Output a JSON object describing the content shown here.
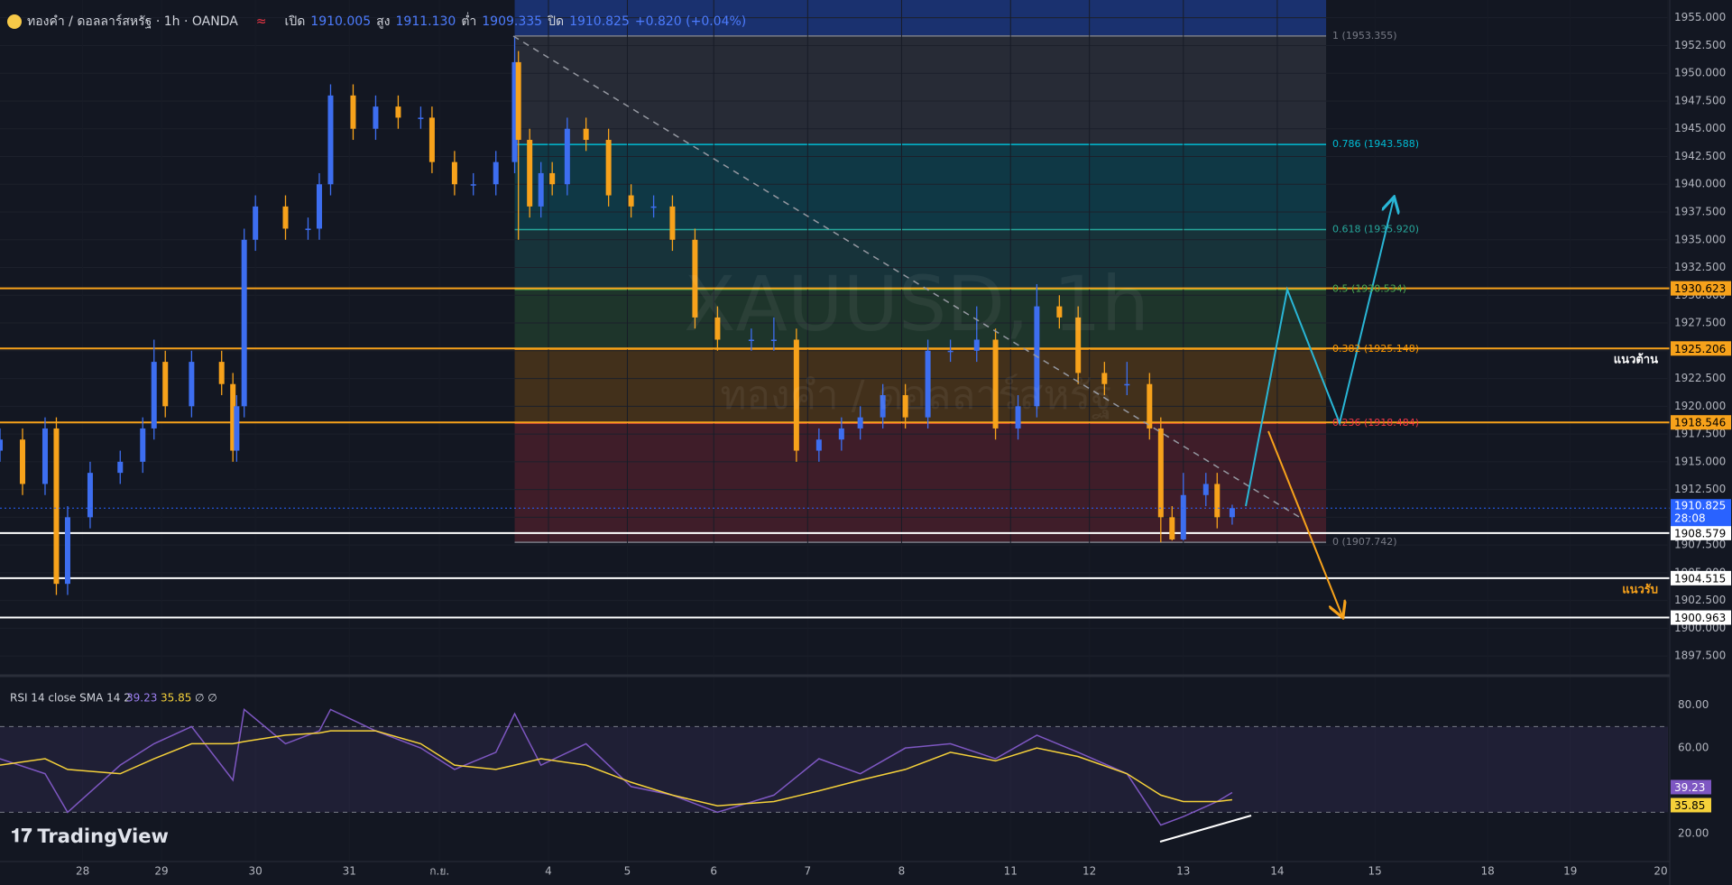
{
  "header": {
    "symbol": "ทองคำ / ดอลลาร์สหรัฐ · 1h · OANDA",
    "open_label": "เปิด",
    "open": "1910.005",
    "high_label": "สูง",
    "high": "1911.130",
    "low_label": "ต่ำ",
    "low": "1909.335",
    "close_label": "ปิด",
    "close": "1910.825",
    "change": "+0.820 (+0.04%)"
  },
  "watermark": [
    "XAUUSD, 1h",
    "ทองคำ / ดอลลาร์สหรัฐ"
  ],
  "logo": "TradingView",
  "annotations": [
    "แนวต้าน",
    "แนวรับ"
  ],
  "chart_data": [
    {
      "type": "candlestick",
      "up_color": "#3d6ef0",
      "down_color": "#f7a21b",
      "x": [
        0,
        6,
        12,
        15,
        18,
        24,
        32,
        38,
        41,
        44,
        51,
        59,
        62,
        63,
        65,
        68,
        76,
        82,
        85,
        88,
        94,
        100,
        106,
        112,
        115,
        121,
        126,
        132,
        137,
        138,
        141,
        144,
        147,
        151,
        156,
        162,
        168,
        174,
        179,
        185,
        191,
        200,
        206,
        212,
        218,
        224,
        229,
        235,
        241,
        247,
        253,
        260,
        265,
        271,
        276,
        282,
        287,
        294,
        300,
        306,
        309,
        312,
        315,
        321,
        324,
        328
      ],
      "open": [
        1916,
        1917,
        1913,
        1918,
        1904,
        1910,
        1914,
        1915,
        1918,
        1924,
        1920,
        1924,
        1922,
        1916,
        1920,
        1935,
        1938,
        1936,
        1936,
        1940,
        1948,
        1945,
        1947,
        1946,
        1946,
        1942,
        1940,
        1940,
        1942,
        1951,
        1944,
        1938,
        1941,
        1940,
        1945,
        1944,
        1939,
        1938,
        1938,
        1935,
        1928,
        1926,
        1926,
        1926,
        1916,
        1917,
        1918,
        1919,
        1921,
        1919,
        1925,
        1925,
        1926,
        1918,
        1920,
        1929,
        1928,
        1923,
        1922,
        1922,
        1918,
        1910,
        1908,
        1912,
        1913,
        1910.005
      ],
      "high": [
        1918,
        1918,
        1919,
        1919,
        1911,
        1915,
        1916,
        1919,
        1926,
        1925,
        1925,
        1925,
        1923,
        1921,
        1936,
        1939,
        1939,
        1937,
        1941,
        1949,
        1949,
        1948,
        1948,
        1947,
        1947,
        1943,
        1941,
        1943,
        1953.355,
        1952,
        1945,
        1942,
        1942,
        1946,
        1946,
        1945,
        1940,
        1939,
        1939,
        1936,
        1929,
        1927,
        1928,
        1927,
        1918,
        1919,
        1920,
        1922,
        1922,
        1926,
        1926,
        1929,
        1927,
        1921,
        1931,
        1930,
        1929,
        1924,
        1924,
        1923,
        1919,
        1911,
        1914,
        1914,
        1914,
        1911.13
      ],
      "low": [
        1915,
        1912,
        1912,
        1903,
        1903,
        1909,
        1913,
        1914,
        1917,
        1919,
        1919,
        1921,
        1915,
        1915,
        1919,
        1934,
        1935,
        1935,
        1935,
        1939,
        1944,
        1944,
        1945,
        1945,
        1941,
        1939,
        1939,
        1939,
        1941,
        1935,
        1937,
        1937,
        1939,
        1939,
        1943,
        1938,
        1937,
        1937,
        1934,
        1927,
        1925,
        1925,
        1925,
        1915,
        1915,
        1916,
        1917,
        1918,
        1918,
        1918,
        1924,
        1924,
        1917,
        1917,
        1919,
        1927,
        1922,
        1921,
        1921,
        1917,
        1907.742,
        1907.9,
        1907.9,
        1911,
        1909,
        1909.335
      ],
      "close": [
        1917,
        1913,
        1918,
        1904,
        1910,
        1914,
        1915,
        1918,
        1924,
        1920,
        1924,
        1922,
        1916,
        1920,
        1935,
        1938,
        1936,
        1936,
        1940,
        1948,
        1945,
        1947,
        1946,
        1946,
        1942,
        1940,
        1940,
        1942,
        1951,
        1944,
        1938,
        1941,
        1940,
        1945,
        1944,
        1939,
        1938,
        1938,
        1935,
        1928,
        1926,
        1926,
        1926,
        1916,
        1917,
        1918,
        1919,
        1921,
        1919,
        1925,
        1925,
        1926,
        1918,
        1920,
        1929,
        1928,
        1923,
        1922,
        1922,
        1918,
        1910,
        1908,
        1912,
        1913,
        1910,
        1910.825
      ],
      "xlim": [
        0,
        444
      ],
      "xticks": [
        {
          "value": 22,
          "label": "28"
        },
        {
          "value": 43,
          "label": "29"
        },
        {
          "value": 68,
          "label": "30"
        },
        {
          "value": 93,
          "label": "31"
        },
        {
          "value": 117,
          "label": "ก.ย."
        },
        {
          "value": 146,
          "label": "4"
        },
        {
          "value": 167,
          "label": "5"
        },
        {
          "value": 190,
          "label": "6"
        },
        {
          "value": 215,
          "label": "7"
        },
        {
          "value": 240,
          "label": "8"
        },
        {
          "value": 269,
          "label": "11"
        },
        {
          "value": 290,
          "label": "12"
        },
        {
          "value": 315,
          "label": "13"
        },
        {
          "value": 340,
          "label": "14"
        },
        {
          "value": 366,
          "label": "15"
        },
        {
          "value": 396,
          "label": "18"
        },
        {
          "value": 418,
          "label": "19"
        },
        {
          "value": 444,
          "label": "20"
        }
      ],
      "ylim": [
        1895.4,
        1956.6
      ],
      "yticks": [
        {
          "value": 1897.5,
          "label": "1897.500"
        },
        {
          "value": 1900,
          "label": "1900.000"
        },
        {
          "value": 1902.5,
          "label": "1902.500"
        },
        {
          "value": 1905,
          "label": "1905.000"
        },
        {
          "value": 1907.5,
          "label": "1907.500"
        },
        {
          "value": 1910,
          "label": "1910.000"
        },
        {
          "value": 1912.5,
          "label": "1912.500"
        },
        {
          "value": 1915,
          "label": "1915.000"
        },
        {
          "value": 1917.5,
          "label": "1917.500"
        },
        {
          "value": 1920,
          "label": "1920.000"
        },
        {
          "value": 1922.5,
          "label": "1922.500"
        },
        {
          "value": 1925,
          "label": "1925.000"
        },
        {
          "value": 1927.5,
          "label": "1927.500"
        },
        {
          "value": 1930,
          "label": "1930.000"
        },
        {
          "value": 1932.5,
          "label": "1932.500"
        },
        {
          "value": 1935,
          "label": "1935.000"
        },
        {
          "value": 1937.5,
          "label": "1937.500"
        },
        {
          "value": 1940,
          "label": "1940.000"
        },
        {
          "value": 1942.5,
          "label": "1942.500"
        },
        {
          "value": 1945,
          "label": "1945.000"
        },
        {
          "value": 1947.5,
          "label": "1947.500"
        },
        {
          "value": 1950,
          "label": "1950.000"
        },
        {
          "value": 1952.5,
          "label": "1952.500"
        },
        {
          "value": 1955,
          "label": "1955.000"
        }
      ],
      "levels": [
        {
          "value": 1930.623,
          "label": "1930.623",
          "color": "#f7a21b"
        },
        {
          "value": 1925.206,
          "label": "1925.206",
          "color": "#f7a21b"
        },
        {
          "value": 1918.546,
          "label": "1918.546",
          "color": "#f7a21b"
        },
        {
          "value": 1908.579,
          "label": "1908.579",
          "color": "#ffffff"
        },
        {
          "value": 1904.515,
          "label": "1904.515",
          "color": "#ffffff"
        },
        {
          "value": 1900.963,
          "label": "1900.963",
          "color": "#ffffff"
        }
      ],
      "last_price": {
        "value": 1910.825,
        "label": "1910.825",
        "countdown": "28:08",
        "color": "#2962ff"
      },
      "fibonacci": {
        "x": [
          137,
          353
        ],
        "levels": [
          {
            "value": 1953.355,
            "label": "1 (1953.355)",
            "color": "#787b86"
          },
          {
            "value": 1943.588,
            "label": "0.786 (1943.588)",
            "color": "#00bcd4"
          },
          {
            "value": 1935.92,
            "label": "0.618 (1935.920)",
            "color": "#26a69a"
          },
          {
            "value": 1930.534,
            "label": "0.5 (1930.534)",
            "color": "#4caf50"
          },
          {
            "value": 1925.148,
            "label": "0.382 (1925.148)",
            "color": "#ff9800"
          },
          {
            "value": 1918.484,
            "label": "0.236 (1918.484)",
            "color": "#f23645"
          },
          {
            "value": 1907.742,
            "label": "0 (1907.742)",
            "color": "#787b86"
          }
        ]
      }
    },
    {
      "type": "line",
      "title": "RSI 14 close SMA 14 2",
      "status": "∅ ∅",
      "x": [
        0,
        12,
        18,
        32,
        41,
        51,
        62,
        65,
        76,
        85,
        88,
        100,
        112,
        121,
        132,
        137,
        144,
        156,
        168,
        179,
        191,
        206,
        218,
        229,
        241,
        253,
        265,
        276,
        287,
        300,
        309,
        315,
        324,
        328
      ],
      "series": [
        {
          "color": "#7e57c2",
          "last_label": "39.23",
          "values": [
            55,
            48,
            30,
            52,
            62,
            70,
            45,
            78,
            62,
            68,
            78,
            68,
            60,
            50,
            58,
            76,
            52,
            62,
            42,
            38,
            30,
            38,
            55,
            48,
            60,
            62,
            55,
            66,
            58,
            48,
            24,
            28,
            35,
            39.23
          ]
        },
        {
          "color": "#f5d13a",
          "last_label": "35.85",
          "values": [
            52,
            55,
            50,
            48,
            55,
            62,
            62,
            63,
            66,
            67,
            68,
            68,
            62,
            52,
            50,
            52,
            55,
            52,
            44,
            38,
            33,
            35,
            40,
            45,
            50,
            58,
            54,
            60,
            56,
            48,
            38,
            35,
            35,
            35.85
          ]
        }
      ],
      "xlim": [
        0,
        444
      ],
      "ylim": [
        7,
        92.5
      ],
      "yticks": [
        {
          "value": 20,
          "label": "20.00"
        },
        {
          "value": 40,
          "label": "40.00"
        },
        {
          "value": 60,
          "label": "60.00"
        },
        {
          "value": 80,
          "label": "80.00"
        }
      ],
      "bands": [
        30,
        70
      ]
    }
  ]
}
